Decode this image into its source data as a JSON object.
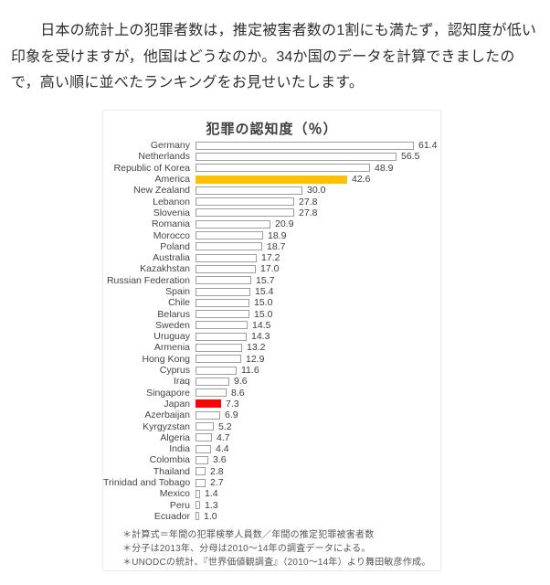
{
  "intro": {
    "text": "　日本の統計上の犯罪者数は，推定被害者数の1割にも満たず，認知度が低い印象を受けますが，他国はどうなのか。34か国のデータを計算できましたので，高い順に並べたランキングをお見せいたします。"
  },
  "chart_data": {
    "type": "bar",
    "orientation": "horizontal",
    "title": "犯罪の認知度（％）",
    "categories": [
      "Germany",
      "Netherlands",
      "Republic of Korea",
      "America",
      "New Zealand",
      "Lebanon",
      "Slovenia",
      "Romania",
      "Morocco",
      "Poland",
      "Australia",
      "Kazakhstan",
      "Russian Federation",
      "Spain",
      "Chile",
      "Belarus",
      "Sweden",
      "Uruguay",
      "Armenia",
      "Hong Kong",
      "Cyprus",
      "Iraq",
      "Singapore",
      "Japan",
      "Azerbaijan",
      "Kyrgyzstan",
      "Algeria",
      "India",
      "Colombia",
      "Thailand",
      "Trinidad and Tobago",
      "Mexico",
      "Peru",
      "Ecuador"
    ],
    "values": [
      61.4,
      56.5,
      48.9,
      42.6,
      30.0,
      27.8,
      27.8,
      20.9,
      18.9,
      18.7,
      17.2,
      17.0,
      15.7,
      15.4,
      15.0,
      15.0,
      14.5,
      14.3,
      13.2,
      12.9,
      11.6,
      9.6,
      8.6,
      7.3,
      6.9,
      5.2,
      4.7,
      4.4,
      3.6,
      2.8,
      2.7,
      1.4,
      1.3,
      1.0
    ],
    "xlim": [
      0,
      65
    ],
    "grid": false,
    "legend": "none",
    "bar_default_fill": "#FFFFFF",
    "bar_border_color": "#9E9E9E",
    "highlight_colors": {
      "America": "#FFC000",
      "Japan": "#FF0000"
    },
    "footnotes": [
      "＊計算式＝年間の犯罪検挙人員数／年間の推定犯罪被害者数",
      "＊分子は2013年、分母は2010～14年の調査データによる。",
      "＊UNODCの統計、『世界価値観調査』（2010～14年）より舞田敏彦作成。"
    ]
  }
}
